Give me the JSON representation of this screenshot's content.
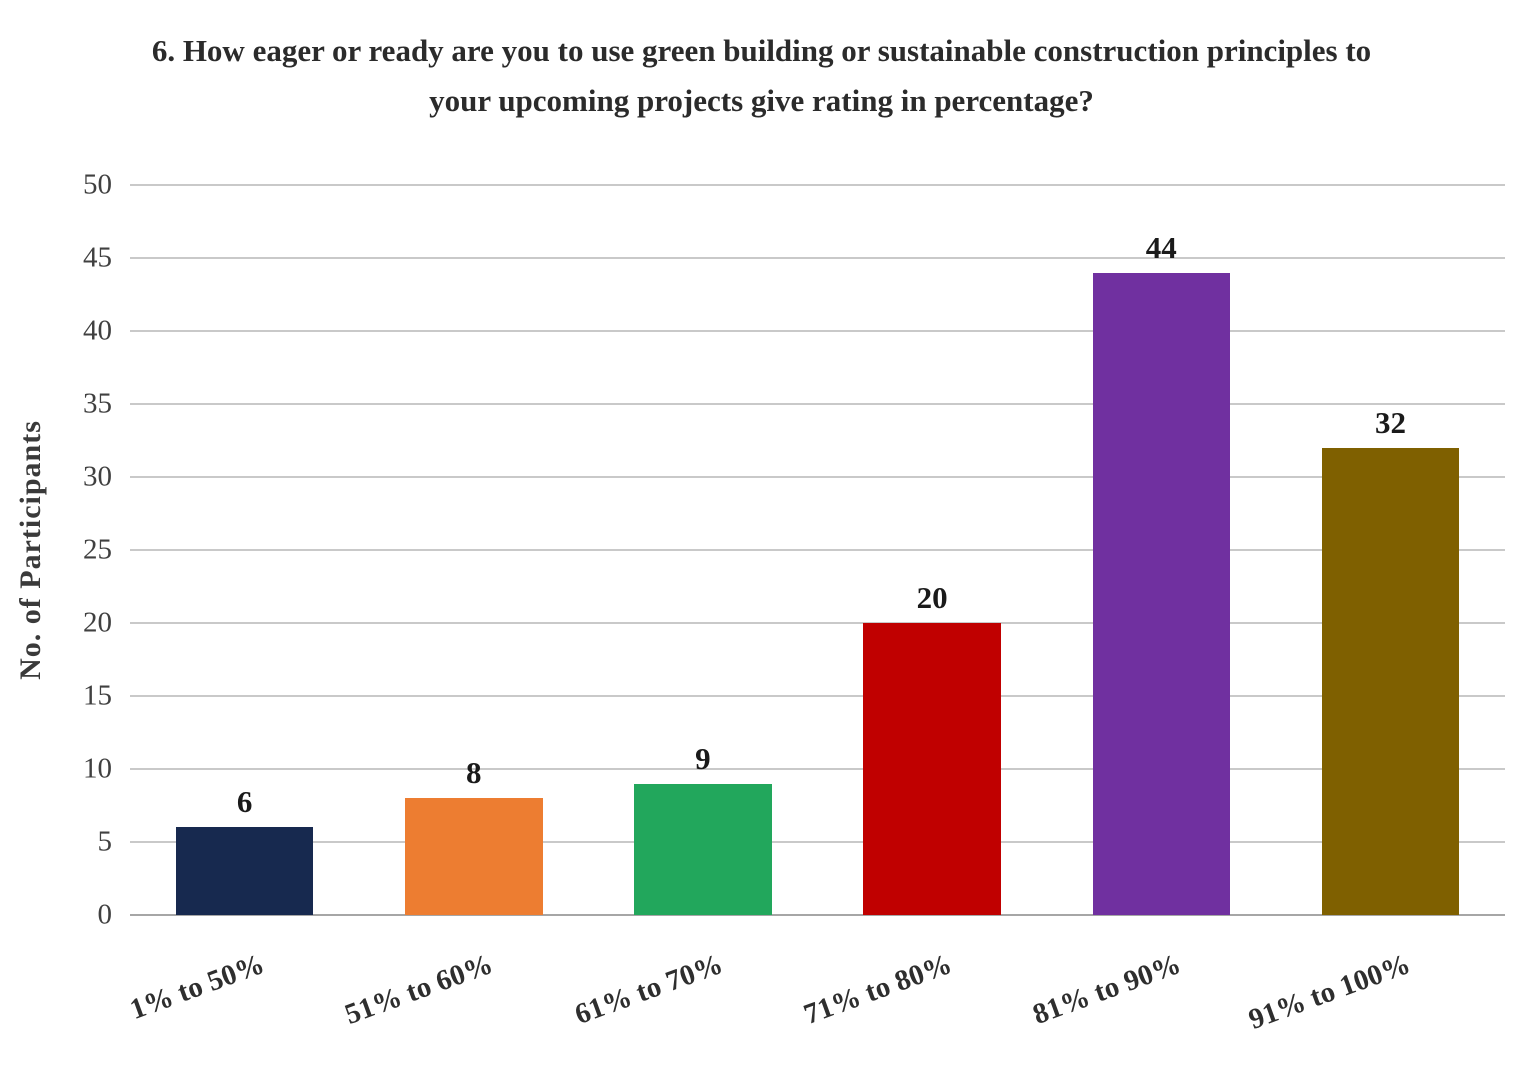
{
  "chart_data": {
    "type": "bar",
    "title": "6. How eager or ready are you to use green building or sustainable construction principles to your upcoming projects give rating in percentage?",
    "categories": [
      "1% to 50%",
      "51% to 60%",
      "61% to 70%",
      "71% to 80%",
      "81% to 90%",
      "91% to 100%"
    ],
    "values": [
      6,
      8,
      9,
      20,
      44,
      32
    ],
    "colors": [
      "#17294F",
      "#ED7D31",
      "#22A75C",
      "#C00000",
      "#7030A0",
      "#7F6000"
    ],
    "xlabel": "",
    "ylabel": "No. of Participants",
    "ylim": [
      0,
      50
    ],
    "ytick_step": 5,
    "grid": true,
    "gridline_color": "#c9c9c9",
    "legend": false
  }
}
